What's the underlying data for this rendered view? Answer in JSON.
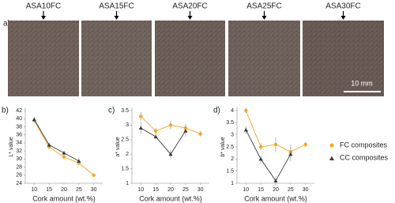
{
  "figure": {
    "panel_label": "a)",
    "samples": [
      "ASA10FC",
      "ASA15FC",
      "ASA20FC",
      "ASA25FC",
      "ASA30FC"
    ],
    "scale_bar": "10 mm"
  },
  "chart_data": [
    {
      "type": "line",
      "panel_label": "b)",
      "x_label": "Cork amount (wt.%)",
      "y_label": "L* value",
      "x": [
        10,
        15,
        20,
        25,
        30
      ],
      "xlim": [
        7,
        33
      ],
      "xticks": [
        10,
        15,
        20,
        25,
        30
      ],
      "ylim": [
        24,
        42
      ],
      "yticks": [
        24,
        26,
        28,
        30,
        32,
        34,
        36,
        38,
        40,
        42
      ],
      "series": [
        {
          "name": "FC composites",
          "color": "#f5a623",
          "marker": "circle",
          "values": [
            39.5,
            33,
            30.5,
            29,
            26
          ],
          "errors": [
            0.5,
            0.4,
            0.4,
            0.3,
            0.2
          ]
        },
        {
          "name": "CC composites",
          "color": "#3a3a3a",
          "marker": "triangle",
          "values": [
            39.8,
            33.5,
            31.5,
            29.5,
            null
          ],
          "errors": [
            0.6,
            0.5,
            0.5,
            0.4,
            null
          ]
        }
      ]
    },
    {
      "type": "line",
      "panel_label": "c)",
      "x_label": "Cork amount (wt.%)",
      "y_label": "a* value",
      "x": [
        10,
        15,
        20,
        25,
        30
      ],
      "xlim": [
        7,
        33
      ],
      "xticks": [
        10,
        15,
        20,
        25,
        30
      ],
      "ylim": [
        1,
        3.5
      ],
      "yticks": [
        1,
        1.5,
        2,
        2.5,
        3,
        3.5
      ],
      "series": [
        {
          "name": "FC composites",
          "color": "#f5a623",
          "marker": "circle",
          "values": [
            3.3,
            2.8,
            3.0,
            2.9,
            2.7
          ],
          "errors": [
            0.15,
            0.1,
            0.15,
            0.15,
            0.1
          ]
        },
        {
          "name": "CC composites",
          "color": "#3a3a3a",
          "marker": "triangle",
          "values": [
            2.9,
            2.6,
            2.0,
            2.8,
            null
          ],
          "errors": [
            0.2,
            0.1,
            0.15,
            0.2,
            null
          ]
        }
      ]
    },
    {
      "type": "line",
      "panel_label": "d)",
      "x_label": "Cork amount (wt.%)",
      "y_label": "b* value",
      "x": [
        10,
        15,
        20,
        25,
        30
      ],
      "xlim": [
        7,
        33
      ],
      "xticks": [
        10,
        15,
        20,
        25,
        30
      ],
      "ylim": [
        1,
        4
      ],
      "yticks": [
        1,
        1.5,
        2,
        2.5,
        3,
        3.5,
        4
      ],
      "series": [
        {
          "name": "FC composites",
          "color": "#f5a623",
          "marker": "circle",
          "values": [
            4.0,
            2.5,
            2.6,
            2.3,
            2.6
          ],
          "errors": [
            0.1,
            0.15,
            0.3,
            0.3,
            0.1
          ]
        },
        {
          "name": "CC composites",
          "color": "#3a3a3a",
          "marker": "triangle",
          "values": [
            3.2,
            2.0,
            1.1,
            2.2,
            null
          ],
          "errors": [
            0.15,
            0.15,
            0.2,
            0.3,
            null
          ]
        }
      ]
    }
  ]
}
